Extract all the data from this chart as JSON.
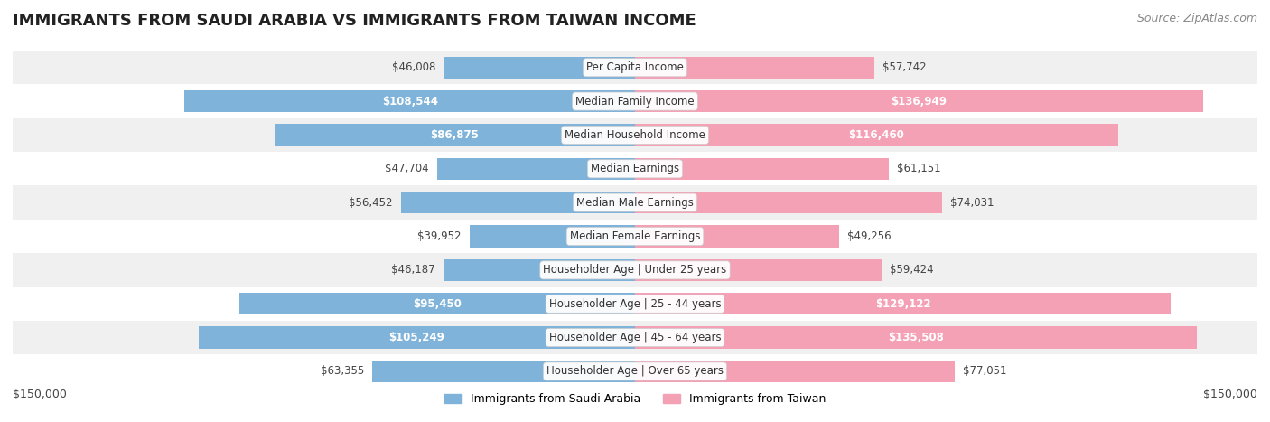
{
  "title": "IMMIGRANTS FROM SAUDI ARABIA VS IMMIGRANTS FROM TAIWAN INCOME",
  "source": "Source: ZipAtlas.com",
  "categories": [
    "Per Capita Income",
    "Median Family Income",
    "Median Household Income",
    "Median Earnings",
    "Median Male Earnings",
    "Median Female Earnings",
    "Householder Age | Under 25 years",
    "Householder Age | 25 - 44 years",
    "Householder Age | 45 - 64 years",
    "Householder Age | Over 65 years"
  ],
  "saudi_values": [
    46008,
    108544,
    86875,
    47704,
    56452,
    39952,
    46187,
    95450,
    105249,
    63355
  ],
  "taiwan_values": [
    57742,
    136949,
    116460,
    61151,
    74031,
    49256,
    59424,
    129122,
    135508,
    77051
  ],
  "saudi_color": "#7fb3d9",
  "taiwan_color": "#f4a0b5",
  "saudi_label_color": "#5a8ab0",
  "taiwan_label_color": "#e07090",
  "label_bg": "#ffffff",
  "row_bg_odd": "#f0f0f0",
  "row_bg_even": "#ffffff",
  "max_value": 150000,
  "x_label_left": "$150,000",
  "x_label_right": "$150,000",
  "legend_saudi": "Immigrants from Saudi Arabia",
  "legend_taiwan": "Immigrants from Taiwan",
  "title_fontsize": 13,
  "source_fontsize": 9,
  "bar_label_fontsize": 8.5,
  "category_fontsize": 8.5
}
